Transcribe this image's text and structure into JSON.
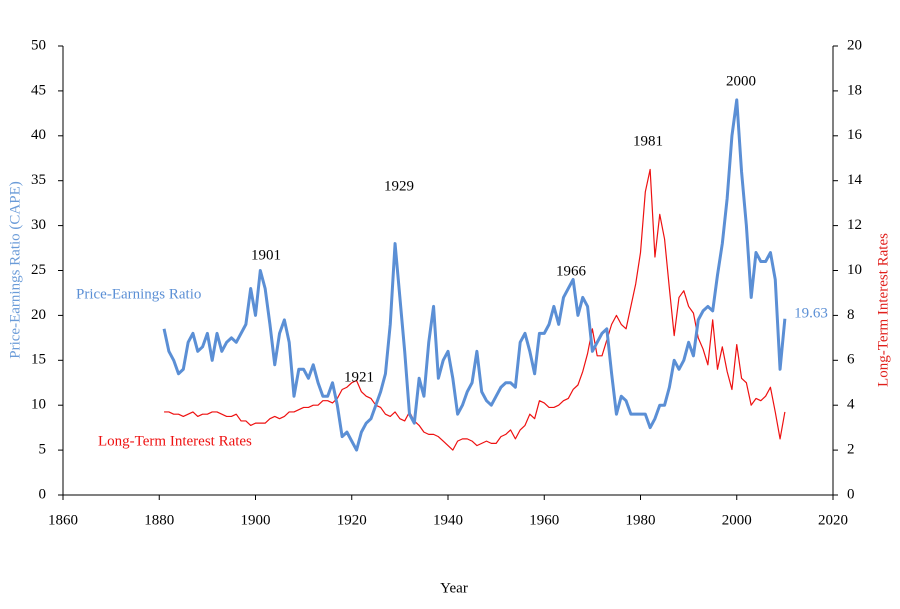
{
  "chart_data": {
    "type": "line",
    "x_label": "Year",
    "y_label": "Price-Earnings Ratio (CAPE)",
    "y2_label": "Long-Term Interest Rates",
    "x": [
      1881,
      1882,
      1883,
      1884,
      1885,
      1886,
      1887,
      1888,
      1889,
      1890,
      1891,
      1892,
      1893,
      1894,
      1895,
      1896,
      1897,
      1898,
      1899,
      1900,
      1901,
      1902,
      1903,
      1904,
      1905,
      1906,
      1907,
      1908,
      1909,
      1910,
      1911,
      1912,
      1913,
      1914,
      1915,
      1916,
      1917,
      1918,
      1919,
      1920,
      1921,
      1922,
      1923,
      1924,
      1925,
      1926,
      1927,
      1928,
      1929,
      1930,
      1931,
      1932,
      1933,
      1934,
      1935,
      1936,
      1937,
      1938,
      1939,
      1940,
      1941,
      1942,
      1943,
      1944,
      1945,
      1946,
      1947,
      1948,
      1949,
      1950,
      1951,
      1952,
      1953,
      1954,
      1955,
      1956,
      1957,
      1958,
      1959,
      1960,
      1961,
      1962,
      1963,
      1964,
      1965,
      1966,
      1967,
      1968,
      1969,
      1970,
      1971,
      1972,
      1973,
      1974,
      1975,
      1976,
      1977,
      1978,
      1979,
      1980,
      1981,
      1982,
      1983,
      1984,
      1985,
      1986,
      1987,
      1988,
      1989,
      1990,
      1991,
      1992,
      1993,
      1994,
      1995,
      1996,
      1997,
      1998,
      1999,
      2000,
      2001,
      2002,
      2003,
      2004,
      2005,
      2006,
      2007,
      2008,
      2009,
      2010
    ],
    "series": [
      {
        "name": "Price-Earnings Ratio",
        "color": "#5b8fd5",
        "axis": "y",
        "values": [
          18.5,
          16,
          15,
          13.5,
          14,
          17,
          18,
          16,
          16.5,
          18,
          15,
          18,
          16,
          17,
          17.5,
          17,
          18,
          19,
          23,
          20,
          25,
          23,
          19,
          14.5,
          18,
          19.5,
          17,
          11,
          14,
          14,
          13,
          14.5,
          12.5,
          11,
          11,
          12.5,
          10,
          6.5,
          7,
          6,
          5,
          7,
          8,
          8.5,
          10,
          11.5,
          13.5,
          19,
          28,
          22,
          16,
          9,
          8,
          13,
          11,
          17,
          21,
          13,
          15,
          16,
          13,
          9,
          10,
          11.5,
          12.5,
          16,
          11.5,
          10.5,
          10,
          11,
          12,
          12.5,
          12.5,
          12,
          17,
          18,
          16,
          13.5,
          18,
          18,
          19,
          21,
          19,
          22,
          23,
          24,
          20,
          22,
          21,
          16,
          17,
          18,
          18.5,
          13.5,
          9,
          11,
          10.5,
          9,
          9,
          9,
          9,
          7.5,
          8.5,
          10,
          10,
          12,
          15,
          14,
          15,
          17,
          15.5,
          19.5,
          20.5,
          21,
          20.5,
          24.5,
          28,
          33,
          40,
          44,
          36,
          30,
          22,
          27,
          26,
          26,
          27,
          24,
          14,
          19.63
        ]
      },
      {
        "name": "Long-Term Interest Rates",
        "color": "#ee1111",
        "axis": "y2",
        "values": [
          3.7,
          3.7,
          3.6,
          3.6,
          3.5,
          3.6,
          3.7,
          3.5,
          3.6,
          3.6,
          3.7,
          3.7,
          3.6,
          3.5,
          3.5,
          3.6,
          3.3,
          3.3,
          3.1,
          3.2,
          3.2,
          3.2,
          3.4,
          3.5,
          3.4,
          3.5,
          3.7,
          3.7,
          3.8,
          3.9,
          3.9,
          4.0,
          4.0,
          4.2,
          4.2,
          4.1,
          4.3,
          4.7,
          4.8,
          5.0,
          5.1,
          4.6,
          4.4,
          4.3,
          4.0,
          3.9,
          3.6,
          3.5,
          3.7,
          3.4,
          3.3,
          3.7,
          3.3,
          3.1,
          2.8,
          2.7,
          2.7,
          2.6,
          2.4,
          2.2,
          2.0,
          2.4,
          2.5,
          2.5,
          2.4,
          2.2,
          2.3,
          2.4,
          2.3,
          2.3,
          2.6,
          2.7,
          2.9,
          2.5,
          2.9,
          3.1,
          3.6,
          3.4,
          4.2,
          4.1,
          3.9,
          3.9,
          4.0,
          4.2,
          4.3,
          4.7,
          4.9,
          5.5,
          6.3,
          7.4,
          6.2,
          6.2,
          6.9,
          7.6,
          8.0,
          7.6,
          7.4,
          8.4,
          9.4,
          10.8,
          13.5,
          14.5,
          10.6,
          12.5,
          11.4,
          9.2,
          7.1,
          8.8,
          9.1,
          8.4,
          8.1,
          7.0,
          6.5,
          5.8,
          7.8,
          5.6,
          6.6,
          5.5,
          4.7,
          6.7,
          5.2,
          5.0,
          4.0,
          4.3,
          4.2,
          4.4,
          4.8,
          3.7,
          2.5,
          3.7
        ]
      }
    ],
    "annotations": [
      {
        "text": "1901",
        "color": "#000000"
      },
      {
        "text": "1921",
        "color": "#000000"
      },
      {
        "text": "1929",
        "color": "#000000"
      },
      {
        "text": "1966",
        "color": "#000000"
      },
      {
        "text": "1981",
        "color": "#000000"
      },
      {
        "text": "2000",
        "color": "#000000"
      },
      {
        "text": "19.63",
        "color": "#5b8fd5"
      }
    ],
    "xlim": [
      1860,
      2020
    ],
    "xticks": [
      1860,
      1880,
      1900,
      1920,
      1940,
      1960,
      1980,
      2000,
      2020
    ],
    "ylim": [
      0,
      50
    ],
    "yticks": [
      0,
      5,
      10,
      15,
      20,
      25,
      30,
      35,
      40,
      45,
      50
    ],
    "y2lim": [
      0,
      20
    ],
    "y2ticks": [
      0,
      2,
      4,
      6,
      8,
      10,
      12,
      14,
      16,
      18,
      20
    ],
    "grid": false
  }
}
